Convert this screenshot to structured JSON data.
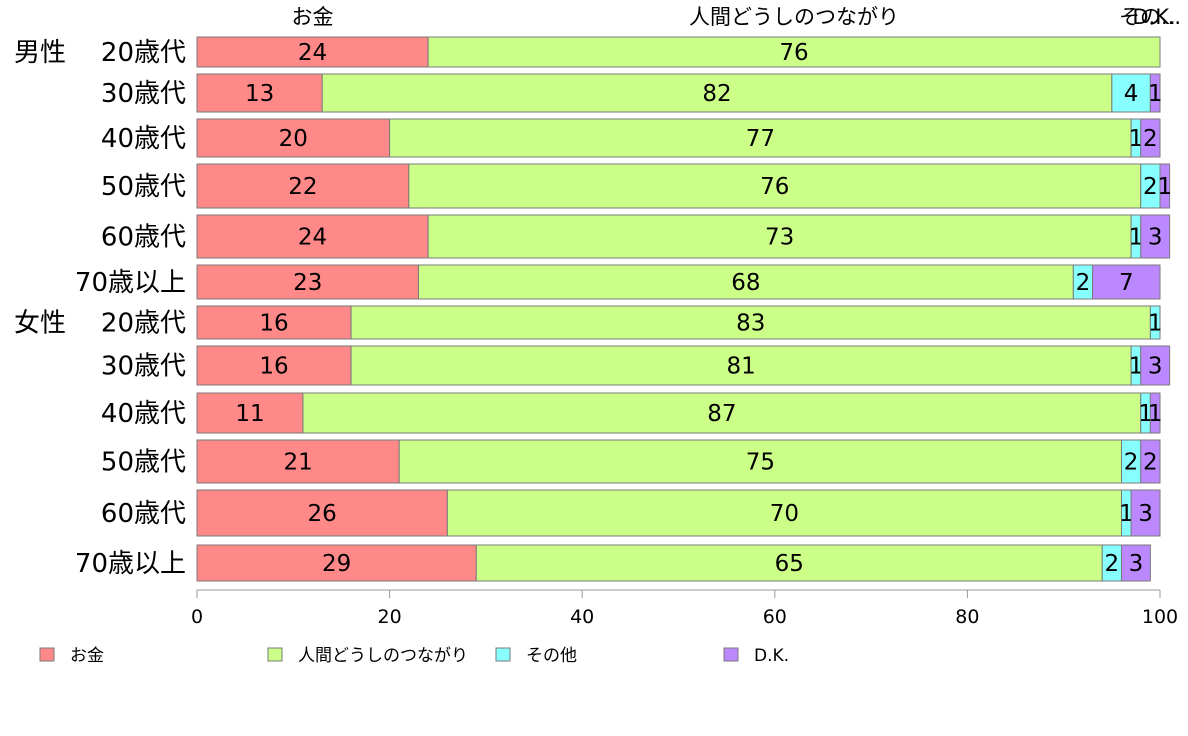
{
  "chart_data": {
    "type": "bar",
    "orientation": "horizontal",
    "stacked": true,
    "xlim": [
      0,
      100
    ],
    "xticks": [
      0,
      20,
      40,
      60,
      80,
      100
    ],
    "legend_position": "bottom",
    "series": [
      {
        "name": "お金",
        "color": "#ff8888",
        "values": [
          24,
          13,
          20,
          22,
          24,
          23,
          16,
          16,
          11,
          21,
          26,
          29
        ]
      },
      {
        "name": "人間どうしのつながり",
        "color": "#ccff88",
        "values": [
          76,
          82,
          77,
          76,
          73,
          68,
          83,
          81,
          87,
          75,
          70,
          65
        ]
      },
      {
        "name": "その他",
        "color": "#88ffff",
        "values": [
          0,
          4,
          1,
          2,
          1,
          2,
          1,
          1,
          1,
          2,
          1,
          2
        ]
      },
      {
        "name": "D.K.",
        "color": "#bb88ff",
        "values": [
          0,
          1,
          2,
          1,
          3,
          7,
          0,
          3,
          1,
          2,
          3,
          3
        ]
      }
    ],
    "rows": [
      {
        "group": "男性",
        "age": "20歳代"
      },
      {
        "group": "",
        "age": "30歳代"
      },
      {
        "group": "",
        "age": "40歳代"
      },
      {
        "group": "",
        "age": "50歳代"
      },
      {
        "group": "",
        "age": "60歳代"
      },
      {
        "group": "",
        "age": "70歳以上"
      },
      {
        "group": "女性",
        "age": "20歳代"
      },
      {
        "group": "",
        "age": "30歳代"
      },
      {
        "group": "",
        "age": "40歳代"
      },
      {
        "group": "",
        "age": "50歳代"
      },
      {
        "group": "",
        "age": "60歳代"
      },
      {
        "group": "",
        "age": "70歳以上"
      }
    ],
    "segment_labels": [
      [
        "24",
        "76",
        "",
        ""
      ],
      [
        "13",
        "82",
        "4",
        "1"
      ],
      [
        "20",
        "77",
        "1",
        "2"
      ],
      [
        "22",
        "76",
        "2",
        "1"
      ],
      [
        "24",
        "73",
        "1",
        "3"
      ],
      [
        "23",
        "68",
        "2",
        "7"
      ],
      [
        "16",
        "83",
        "1",
        ""
      ],
      [
        "16",
        "81",
        "1",
        "3"
      ],
      [
        "11",
        "87",
        "1",
        "1"
      ],
      [
        "21",
        "75",
        "2",
        "2"
      ],
      [
        "26",
        "70",
        "1",
        "3"
      ],
      [
        "29",
        "65",
        "2",
        "3"
      ]
    ],
    "top_labels": [
      "お金",
      "人間どうしのつながり",
      "その...",
      "D.K."
    ]
  }
}
